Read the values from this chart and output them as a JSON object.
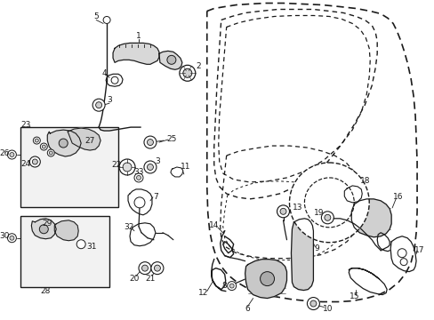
{
  "bg_color": "#ffffff",
  "line_color": "#1a1a1a",
  "figsize": [
    4.89,
    3.6
  ],
  "dpi": 100,
  "font_size": 6.5,
  "lw_main": 1.1,
  "lw_part": 0.85,
  "lw_thin": 0.5
}
